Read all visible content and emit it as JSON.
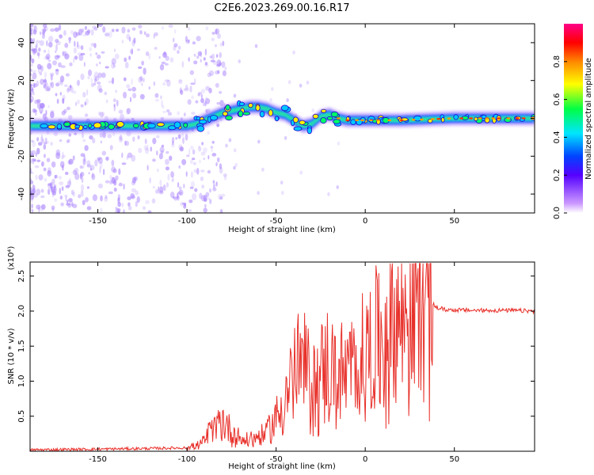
{
  "title": "C2E6.2023.269.00.16.R17",
  "colors": {
    "snr_line": "#e8302a",
    "signal_core": "#39e67a",
    "signal_edge": "#2244ff",
    "scatter": "#a37bff",
    "axes": "#000000"
  },
  "chart_data": [
    {
      "type": "heatmap",
      "xlabel": "Height of straight line (km)",
      "ylabel": "Frequency (Hz)",
      "xlim": [
        -188,
        95
      ],
      "ylim": [
        -50,
        50
      ],
      "x_ticks": [
        -150,
        -100,
        -50,
        0,
        50
      ],
      "y_ticks": [
        -40,
        -20,
        0,
        20,
        40
      ],
      "colorbar": {
        "label": "Normalized spectral amplitude",
        "range": [
          0,
          1
        ],
        "ticks": [
          "0.0",
          "0.2",
          "0.4",
          "0.6",
          "0.8"
        ],
        "colormap": "rainbow (white→purple→blue→cyan→green→yellow→red→magenta)"
      },
      "signal_trace": {
        "x": [
          -188,
          -150,
          -120,
          -100,
          -95,
          -90,
          -85,
          -80,
          -75,
          -70,
          -65,
          -60,
          -55,
          -50,
          -45,
          -40,
          -35,
          -30,
          -25,
          -20,
          -15,
          -10,
          0,
          20,
          50,
          95
        ],
        "y": [
          -4,
          -4,
          -4,
          -4,
          -3,
          -1,
          1,
          3,
          4,
          5,
          6,
          6,
          5,
          3,
          2,
          -1,
          -4,
          -3,
          1,
          2,
          0,
          -1,
          -1,
          -1,
          0,
          0
        ]
      },
      "grid": false
    },
    {
      "type": "line",
      "xlabel": "Height of straight line (km)",
      "ylabel": "SNR (10 * v/v)",
      "y_scale_label": "(x10⁴)",
      "xlim": [
        -188,
        95
      ],
      "ylim": [
        0,
        2.7
      ],
      "x_ticks": [
        -150,
        -100,
        -50,
        0,
        50
      ],
      "y_ticks": [
        "0.5",
        "1.0",
        "1.5",
        "2.0",
        "2.5"
      ],
      "series": [
        {
          "x": [
            -188,
            -150,
            -120,
            -100,
            -92,
            -88,
            -84,
            -80,
            -76,
            -72,
            -68,
            -64,
            -60,
            -56,
            -52,
            -48,
            -44,
            -40,
            -36,
            -32,
            -28,
            -24,
            -20,
            -16,
            -12,
            -8,
            -4,
            0,
            4,
            8,
            12,
            16,
            20,
            24,
            28,
            32,
            36,
            40,
            45,
            60,
            80,
            95
          ],
          "y": [
            0.02,
            0.03,
            0.04,
            0.05,
            0.1,
            0.25,
            0.32,
            0.45,
            0.3,
            0.22,
            0.15,
            0.18,
            0.2,
            0.25,
            0.4,
            0.55,
            0.85,
            1.05,
            1.25,
            1.0,
            0.95,
            1.1,
            1.2,
            1.05,
            1.05,
            1.1,
            1.25,
            1.35,
            1.45,
            1.55,
            1.75,
            1.8,
            1.9,
            2.05,
            2.15,
            2.2,
            2.15,
            2.05,
            2.02,
            2.01,
            2.01,
            2.0
          ]
        }
      ],
      "grid": false
    }
  ]
}
